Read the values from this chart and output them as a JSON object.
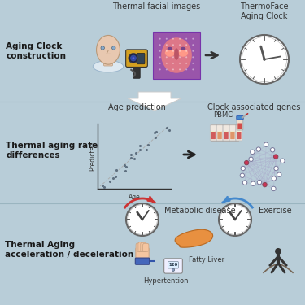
{
  "bg_color": "#b8cdd8",
  "divider_color": "#9ab5c0",
  "section1": {
    "label": "Aging Clock\nconstruction",
    "title1": "Thermal facial images",
    "title2": "ThermoFace\nAging Clock"
  },
  "section2": {
    "label": "Thermal aging rate\ndifferences",
    "title1": "Age prediction",
    "title2": "Clock associated genes",
    "pbmc": "PBMC"
  },
  "section3": {
    "label": "Thermal Aging\nacceleration / deceleration",
    "title1": "Metabolic disease",
    "title2": "Exercise",
    "sub1": "Fatty Liver",
    "sub2": "Hypertention"
  },
  "face_color": "#e8c8b0",
  "face_edge": "#b89878",
  "shoulder_color": "#dde8f0",
  "shoulder_edge": "#9ab5cc",
  "camera_body": "#d4a020",
  "camera_lens1": "#222244",
  "camera_lens2": "#3344aa",
  "thermal_bg": "#9955aa",
  "thermal_face": "#dd7788",
  "thermal_hot": "#ff9988",
  "thermal_cool": "#774488",
  "clock_face": "#ffffff",
  "clock_edge": "#666666",
  "scatter_color": "#556677",
  "liver_color": "#e89040",
  "liver_edge": "#b86820",
  "person_color": "#333333",
  "bp_color": "#4466bb",
  "hub_color": "#cc3355",
  "node_color": "#ffffff",
  "node_edge": "#777799",
  "tube_bg": "#eeddcc",
  "tube_red": "#cc4444",
  "tube_orange": "#dd8855",
  "blood_cap": "#4488cc",
  "blood_red": "#cc3333",
  "acc_arrow": "#cc3333",
  "dec_arrow": "#4488cc"
}
